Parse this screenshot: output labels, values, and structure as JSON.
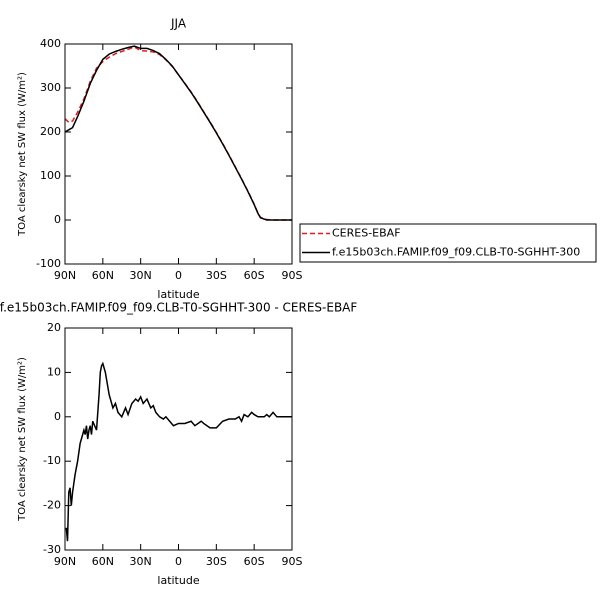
{
  "chart_data": [
    {
      "type": "line",
      "title": "JJA",
      "y_label": "TOA clearsky net SW flux (W/m²)",
      "x_label": "latitude",
      "x": [
        90,
        87,
        84,
        80,
        75,
        70,
        65,
        60,
        55,
        50,
        45,
        40,
        35,
        30,
        25,
        20,
        15,
        10,
        5,
        0,
        -5,
        -10,
        -15,
        -20,
        -25,
        -30,
        -35,
        -40,
        -45,
        -50,
        -55,
        -60,
        -63,
        -65,
        -70,
        -75,
        -80,
        -85,
        -90
      ],
      "series": [
        {
          "name": "CERES-EBAF",
          "color": "#e41a1c",
          "dashed": true,
          "values": [
            230,
            222,
            225,
            245,
            275,
            315,
            345,
            360,
            370,
            378,
            383,
            388,
            393,
            385,
            384,
            382,
            376,
            364,
            349,
            330,
            311,
            291,
            269,
            246,
            223,
            199,
            174,
            148,
            121,
            94,
            66,
            36,
            16,
            6,
            1,
            0,
            0,
            0,
            0
          ]
        },
        {
          "name": "f.e15b03ch.FAMIP.f09_f09.CLB-T0-SGHHT-300",
          "color": "#000000",
          "dashed": false,
          "values": [
            200,
            205,
            210,
            235,
            270,
            310,
            340,
            365,
            377,
            383,
            388,
            392,
            395,
            390,
            390,
            385,
            378,
            365,
            350,
            330,
            310,
            290,
            268,
            245,
            222,
            198,
            173,
            147,
            120,
            93,
            65,
            35,
            15,
            5,
            0,
            0,
            0,
            0,
            0
          ]
        }
      ],
      "xlim": [
        90,
        -90
      ],
      "xticks": [
        {
          "value": 90,
          "label": "90N"
        },
        {
          "value": 60,
          "label": "60N"
        },
        {
          "value": 30,
          "label": "30N"
        },
        0,
        {
          "value": -30,
          "label": "30S"
        },
        {
          "value": -60,
          "label": "60S"
        },
        {
          "value": -90,
          "label": "90S"
        }
      ],
      "ylim": [
        -100,
        400
      ],
      "yticks": [
        -100,
        0,
        100,
        200,
        300,
        400
      ],
      "legend": "right"
    },
    {
      "type": "line",
      "title": "f.e15b03ch.FAMIP.f09_f09.CLB-T0-SGHHT-300 - CERES-EBAF",
      "y_label": "TOA clearsky net SW flux (W/m²)",
      "x_label": "latitude",
      "x": [
        89,
        88,
        87,
        86,
        85,
        84,
        82,
        80,
        78,
        77,
        75,
        74,
        73,
        72,
        71,
        70,
        69,
        68,
        65,
        63,
        62,
        61,
        60,
        58,
        55,
        52,
        50,
        48,
        45,
        42,
        40,
        37,
        34,
        32,
        30,
        28,
        25,
        22,
        20,
        18,
        15,
        12,
        10,
        7,
        4,
        0,
        -5,
        -10,
        -13,
        -18,
        -20,
        -25,
        -30,
        -35,
        -40,
        -45,
        -48,
        -50,
        -52,
        -55,
        -58,
        -60,
        -63,
        -68,
        -70,
        -72,
        -75,
        -78,
        -80,
        -90
      ],
      "series": [
        {
          "color": "#000000",
          "dashed": false,
          "values": [
            -25,
            -28,
            -17,
            -16,
            -20,
            -17,
            -13,
            -10,
            -6,
            -5,
            -3,
            -4,
            -2,
            -5,
            -3,
            -2,
            -4,
            -1,
            -3,
            5,
            10,
            11.5,
            12,
            10,
            5,
            2,
            3,
            1,
            0,
            2,
            0.5,
            3,
            4,
            3.5,
            4.5,
            3,
            4,
            2,
            2.5,
            1,
            0,
            -0.5,
            0,
            -1,
            -2,
            -1.5,
            -1.5,
            -1,
            -2,
            -1,
            -1.5,
            -2.5,
            -2.5,
            -1,
            -0.5,
            -0.5,
            0,
            -1,
            0.5,
            0,
            1,
            0.5,
            0,
            0,
            0.5,
            0,
            1,
            0,
            0,
            0
          ]
        }
      ],
      "xlim": [
        90,
        -90
      ],
      "xticks": [
        {
          "value": 90,
          "label": "90N"
        },
        {
          "value": 60,
          "label": "60N"
        },
        {
          "value": 30,
          "label": "30N"
        },
        0,
        {
          "value": -30,
          "label": "30S"
        },
        {
          "value": -60,
          "label": "60S"
        },
        {
          "value": -90,
          "label": "90S"
        }
      ],
      "ylim": [
        -30,
        20
      ],
      "yticks": [
        -30,
        -20,
        -10,
        0,
        10,
        20
      ]
    }
  ]
}
